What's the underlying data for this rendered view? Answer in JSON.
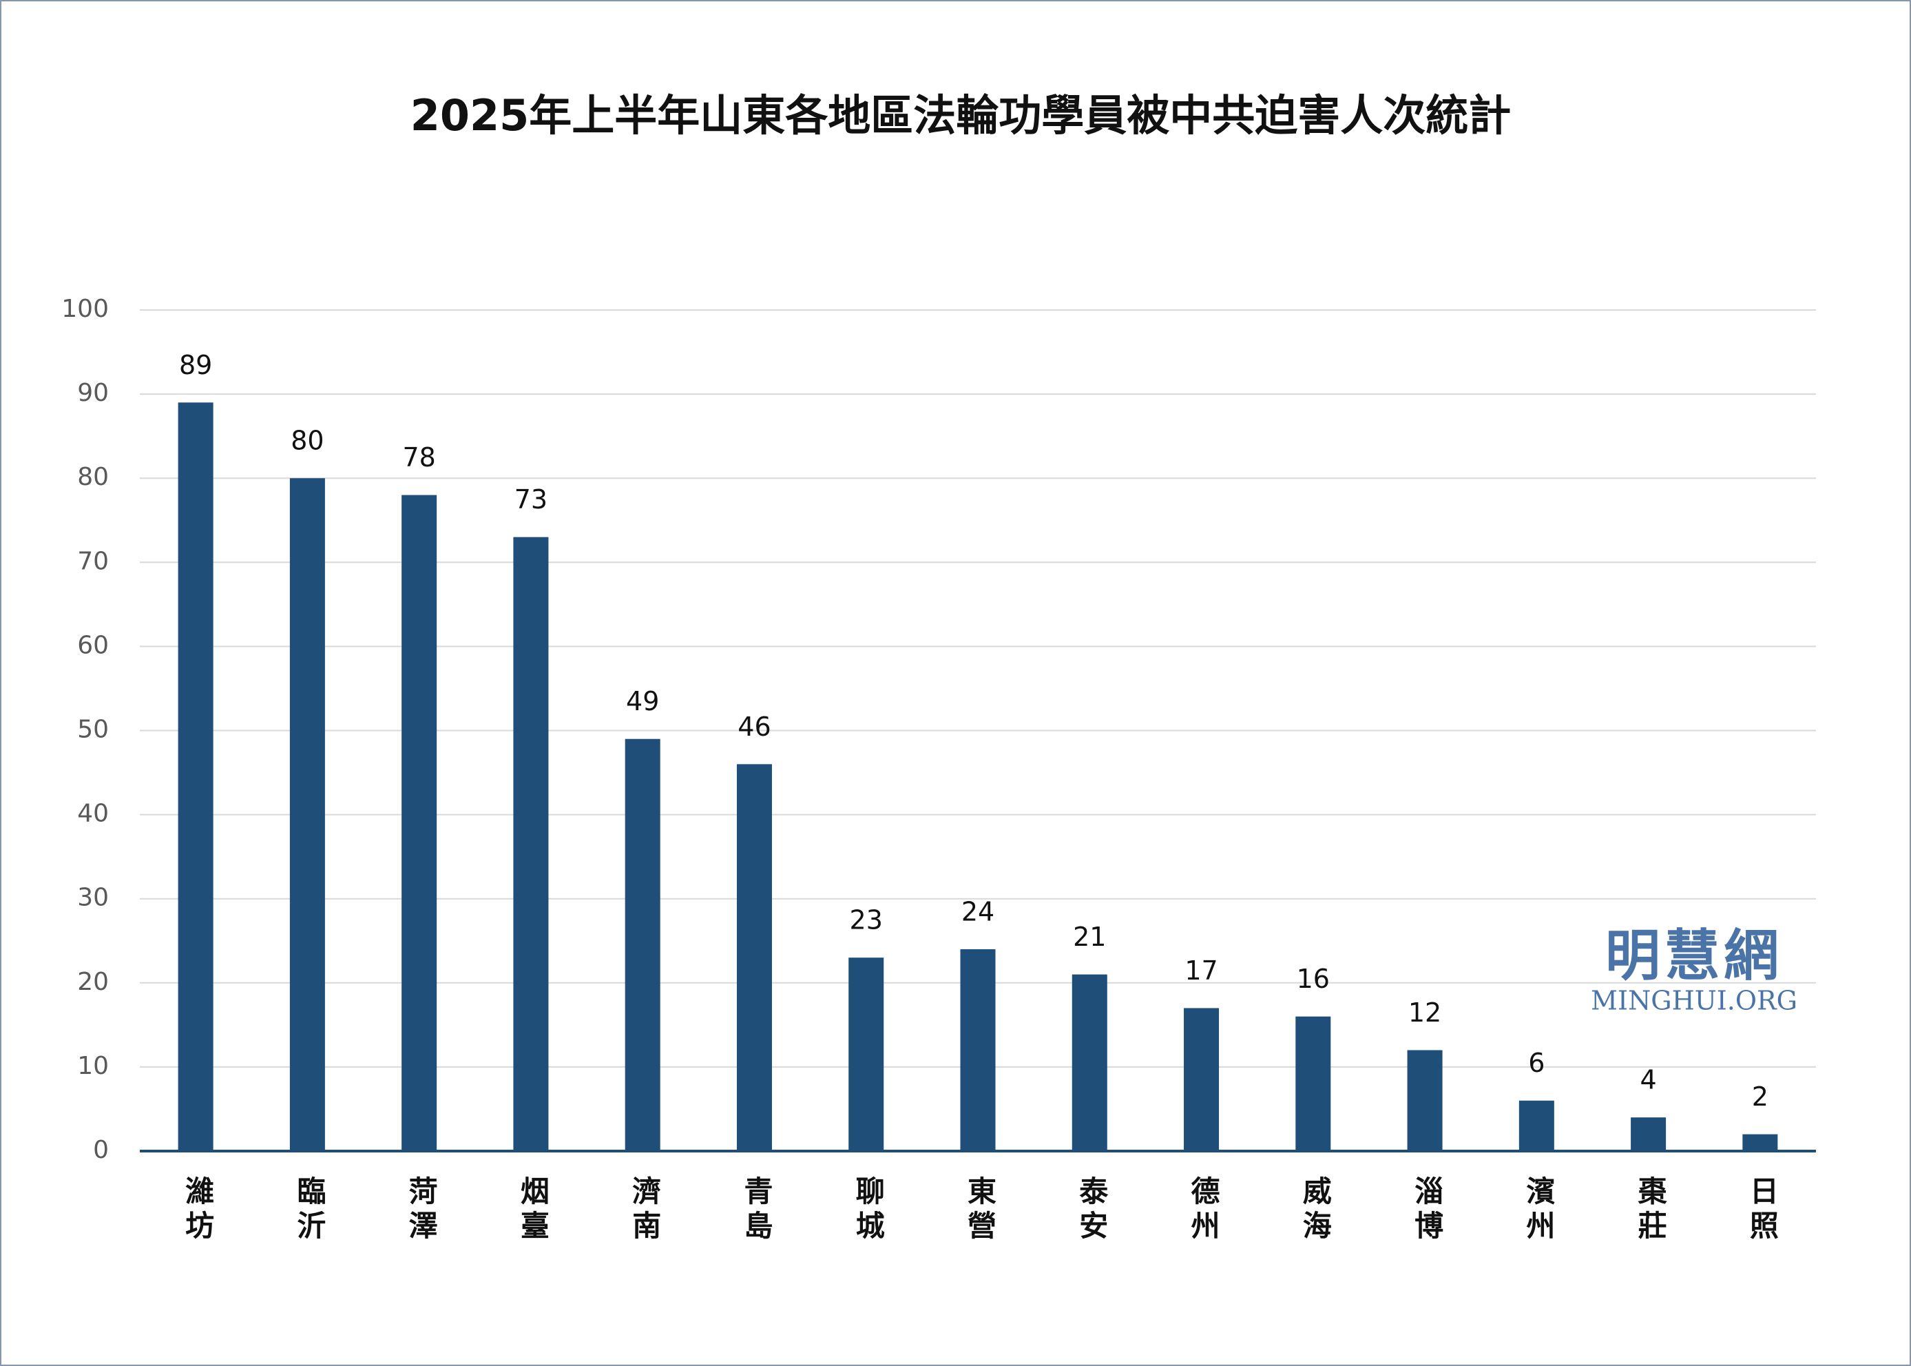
{
  "chart_data": {
    "type": "bar",
    "title": "2025年上半年山東各地區法輪功學員被中共迫害人次統計",
    "categories": [
      "濰坊",
      "臨沂",
      "菏澤",
      "烟臺",
      "濟南",
      "青島",
      "聊城",
      "東營",
      "泰安",
      "德州",
      "威海",
      "淄博",
      "濱州",
      "棗莊",
      "日照"
    ],
    "values": [
      89,
      80,
      78,
      73,
      49,
      46,
      23,
      24,
      21,
      17,
      16,
      12,
      6,
      4,
      2
    ],
    "color": "#1f4e79",
    "ylim": [
      0,
      100
    ],
    "yticks": [
      0,
      10,
      20,
      30,
      40,
      50,
      60,
      70,
      80,
      90,
      100
    ],
    "grid": true,
    "watermark": {
      "name": "明慧網",
      "site": "MINGHUI.ORG"
    }
  }
}
